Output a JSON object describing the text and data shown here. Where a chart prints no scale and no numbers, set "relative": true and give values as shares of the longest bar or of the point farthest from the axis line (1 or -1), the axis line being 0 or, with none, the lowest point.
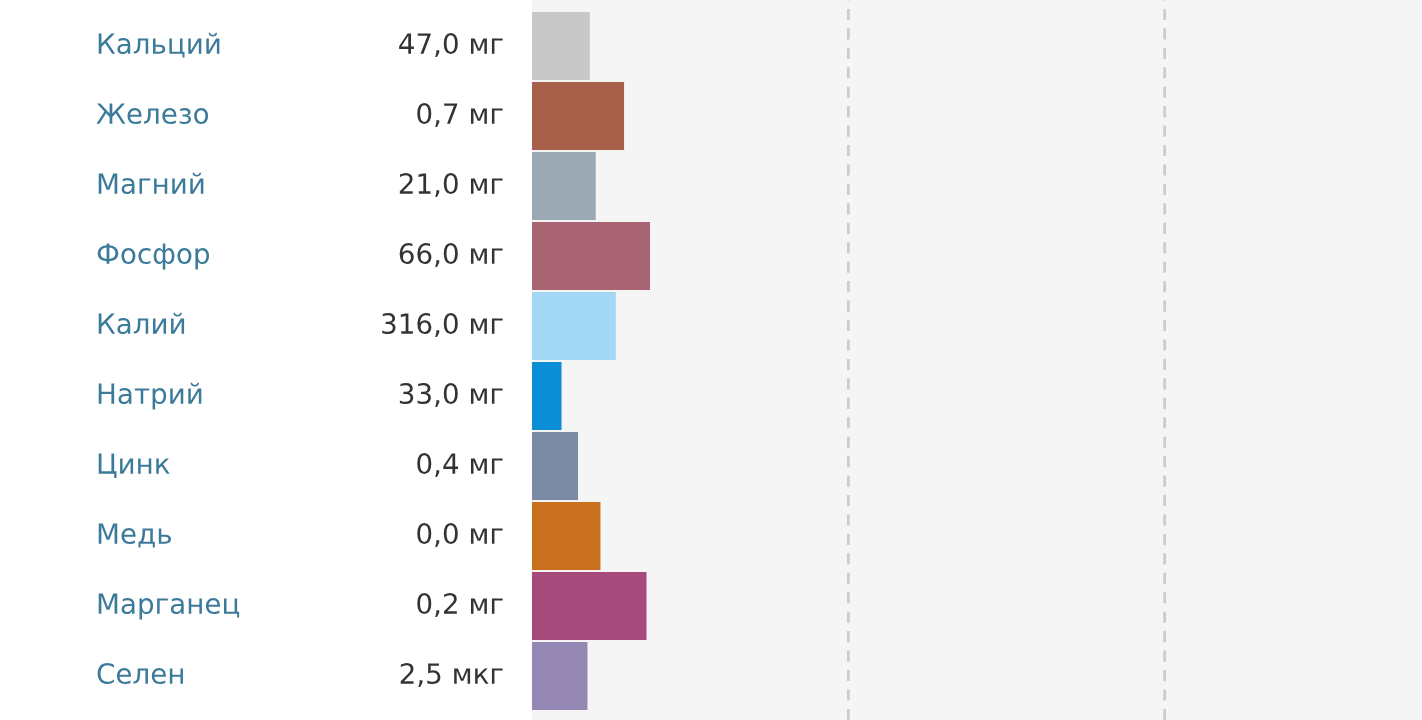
{
  "chart_data": {
    "type": "bar",
    "orientation": "horizontal",
    "relative": true,
    "ref_lines": [
      {
        "axis": "x",
        "value": 2.68,
        "color": "#cccccc",
        "line_style": "dashed"
      },
      {
        "axis": "x",
        "value": 5.36,
        "color": "#cccccc",
        "line_style": "dashed"
      }
    ],
    "categories": [
      "Кальций",
      "Железо",
      "Магний",
      "Фосфор",
      "Калий",
      "Натрий",
      "Цинк",
      "Медь",
      "Марганец",
      "Селен"
    ],
    "values": [
      0.49,
      0.78,
      0.54,
      1,
      0.71,
      0.25,
      0.39,
      0.58,
      0.97,
      0.47
    ],
    "annotations": [
      "47,0 мг",
      "0,7 мг",
      "21,0 мг",
      "66,0 мг",
      "316,0 мг",
      "33,0 мг",
      "0,4 мг",
      "0,0 мг",
      "0,2 мг",
      "2,5 мкг"
    ],
    "colors": [
      "#c8c8c8",
      "#a9604a",
      "#9aa9b4",
      "#a86472",
      "#a3d8f5",
      "#0a8fd6",
      "#7a8ba3",
      "#c8701e",
      "#a54a7a",
      "#9688b4"
    ]
  }
}
